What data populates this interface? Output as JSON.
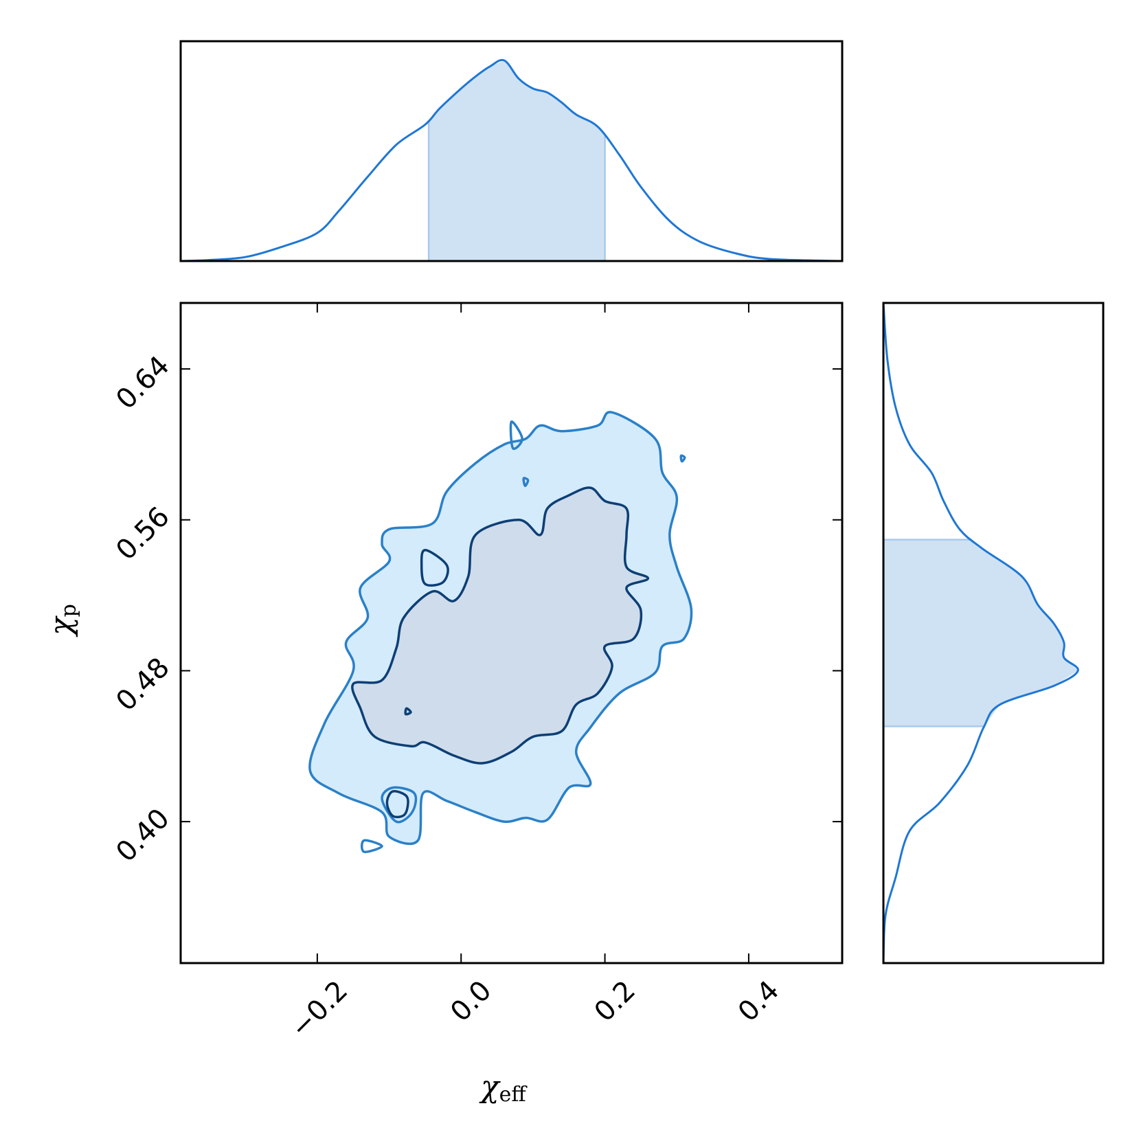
{
  "chart_data": {
    "type": "corner",
    "x_label": "χ",
    "x_label_sub": "eff",
    "y_label": "χ",
    "y_label_sub": "p",
    "xlim": [
      -0.39,
      0.53
    ],
    "ylim": [
      0.325,
      0.675
    ],
    "x_ticks": [
      -0.2,
      0.0,
      0.2,
      0.4
    ],
    "x_tick_labels": [
      "−0.2",
      "0.0",
      "0.2",
      "0.4"
    ],
    "y_ticks": [
      0.4,
      0.48,
      0.56,
      0.64
    ],
    "y_tick_labels": [
      "0.40",
      "0.48",
      "0.56",
      "0.64"
    ],
    "colors": {
      "line": "#1f77d4",
      "band_fill": "#cfe2f3",
      "outer_fill": "#d4ebfb",
      "outer_stroke": "#2a80c8",
      "inner_fill": "#cfdcec",
      "inner_stroke": "#0d3f74"
    },
    "x_marginal": {
      "x": [
        -0.39,
        -0.35,
        -0.3,
        -0.25,
        -0.2,
        -0.17,
        -0.13,
        -0.09,
        -0.05,
        -0.03,
        0.0,
        0.02,
        0.04,
        0.06,
        0.08,
        0.1,
        0.12,
        0.14,
        0.16,
        0.19,
        0.22,
        0.25,
        0.29,
        0.33,
        0.38,
        0.43,
        0.53
      ],
      "density": [
        0.0,
        0.005,
        0.02,
        0.07,
        0.14,
        0.25,
        0.42,
        0.58,
        0.68,
        0.76,
        0.86,
        0.92,
        0.97,
        1.0,
        0.91,
        0.86,
        0.84,
        0.79,
        0.73,
        0.67,
        0.53,
        0.37,
        0.2,
        0.1,
        0.04,
        0.01,
        0.0
      ],
      "band": [
        -0.045,
        0.2
      ]
    },
    "y_marginal": {
      "y": [
        0.325,
        0.35,
        0.37,
        0.395,
        0.41,
        0.43,
        0.45,
        0.462,
        0.472,
        0.48,
        0.487,
        0.495,
        0.505,
        0.515,
        0.53,
        0.545,
        0.555,
        0.57,
        0.585,
        0.6,
        0.62,
        0.645,
        0.675
      ],
      "density": [
        0.0,
        0.01,
        0.06,
        0.13,
        0.28,
        0.42,
        0.5,
        0.58,
        0.85,
        0.97,
        0.9,
        0.9,
        0.85,
        0.77,
        0.69,
        0.49,
        0.38,
        0.3,
        0.24,
        0.13,
        0.06,
        0.02,
        0.0
      ],
      "band": [
        0.4505,
        0.5495
      ]
    },
    "contours": {
      "outer": [
        [
          [
            -0.053,
            0.415
          ],
          [
            -0.02,
            0.411
          ],
          [
            0.02,
            0.405
          ],
          [
            0.06,
            0.4
          ],
          [
            0.09,
            0.402
          ],
          [
            0.12,
            0.401
          ],
          [
            0.15,
            0.418
          ],
          [
            0.18,
            0.42
          ],
          [
            0.16,
            0.437
          ],
          [
            0.18,
            0.45
          ],
          [
            0.22,
            0.468
          ],
          [
            0.27,
            0.479
          ],
          [
            0.28,
            0.493
          ],
          [
            0.31,
            0.497
          ],
          [
            0.32,
            0.513
          ],
          [
            0.3,
            0.535
          ],
          [
            0.29,
            0.552
          ],
          [
            0.3,
            0.572
          ],
          [
            0.28,
            0.585
          ],
          [
            0.27,
            0.603
          ],
          [
            0.21,
            0.617
          ],
          [
            0.19,
            0.61
          ],
          [
            0.14,
            0.607
          ],
          [
            0.11,
            0.61
          ],
          [
            0.09,
            0.603
          ],
          [
            0.06,
            0.6
          ],
          [
            0.02,
            0.59
          ],
          [
            -0.02,
            0.575
          ],
          [
            -0.04,
            0.558
          ],
          [
            -0.1,
            0.555
          ],
          [
            -0.11,
            0.547
          ],
          [
            -0.1,
            0.538
          ],
          [
            -0.14,
            0.524
          ],
          [
            -0.13,
            0.508
          ],
          [
            -0.16,
            0.495
          ],
          [
            -0.15,
            0.48
          ],
          [
            -0.19,
            0.452
          ],
          [
            -0.21,
            0.427
          ],
          [
            -0.17,
            0.415
          ],
          [
            -0.11,
            0.405
          ],
          [
            -0.1,
            0.392
          ],
          [
            -0.06,
            0.39
          ]
        ]
      ],
      "inner": [
        [
          [
            -0.05,
            0.442
          ],
          [
            -0.01,
            0.435
          ],
          [
            0.03,
            0.431
          ],
          [
            0.07,
            0.437
          ],
          [
            0.1,
            0.445
          ],
          [
            0.14,
            0.448
          ],
          [
            0.16,
            0.462
          ],
          [
            0.19,
            0.468
          ],
          [
            0.21,
            0.482
          ],
          [
            0.2,
            0.493
          ],
          [
            0.24,
            0.497
          ],
          [
            0.25,
            0.512
          ],
          [
            0.23,
            0.524
          ],
          [
            0.26,
            0.529
          ],
          [
            0.23,
            0.535
          ],
          [
            0.23,
            0.552
          ],
          [
            0.23,
            0.566
          ],
          [
            0.2,
            0.57
          ],
          [
            0.18,
            0.577
          ],
          [
            0.15,
            0.573
          ],
          [
            0.12,
            0.566
          ],
          [
            0.11,
            0.552
          ],
          [
            0.08,
            0.56
          ],
          [
            0.02,
            0.552
          ],
          [
            0.01,
            0.53
          ],
          [
            -0.01,
            0.517
          ],
          [
            -0.04,
            0.522
          ],
          [
            -0.08,
            0.508
          ],
          [
            -0.09,
            0.492
          ],
          [
            -0.11,
            0.475
          ],
          [
            -0.15,
            0.473
          ],
          [
            -0.14,
            0.46
          ],
          [
            -0.12,
            0.445
          ],
          [
            -0.07,
            0.44
          ]
        ]
      ],
      "islands": [
        {
          "level": "outer",
          "points": [
            [
              -0.095,
              0.418
            ],
            [
              -0.065,
              0.415
            ],
            [
              -0.068,
              0.405
            ],
            [
              -0.09,
              0.4
            ],
            [
              -0.11,
              0.412
            ]
          ]
        },
        {
          "level": "inner",
          "points": [
            [
              -0.095,
              0.416
            ],
            [
              -0.075,
              0.413
            ],
            [
              -0.078,
              0.404
            ],
            [
              -0.095,
              0.403
            ],
            [
              -0.103,
              0.41
            ]
          ]
        },
        {
          "level": "inner",
          "points": [
            [
              -0.05,
              0.544
            ],
            [
              -0.02,
              0.536
            ],
            [
              -0.025,
              0.527
            ],
            [
              -0.05,
              0.526
            ],
            [
              -0.055,
              0.536
            ]
          ]
        },
        {
          "level": "inner",
          "points": [
            [
              -0.076,
              0.46
            ],
            [
              -0.07,
              0.458
            ],
            [
              -0.077,
              0.457
            ]
          ]
        },
        {
          "level": "outer",
          "points": [
            [
              0.306,
              0.594
            ],
            [
              0.311,
              0.593
            ],
            [
              0.307,
              0.591
            ]
          ]
        },
        {
          "level": "outer",
          "points": [
            [
              0.087,
              0.582
            ],
            [
              0.093,
              0.581
            ],
            [
              0.089,
              0.578
            ]
          ]
        },
        {
          "level": "outer",
          "points": [
            [
              -0.135,
              0.39
            ],
            [
              -0.11,
              0.387
            ],
            [
              -0.135,
              0.384
            ]
          ]
        },
        {
          "level": "outer",
          "points": [
            [
              0.07,
              0.612
            ],
            [
              0.085,
              0.603
            ],
            [
              0.072,
              0.598
            ]
          ]
        }
      ]
    }
  }
}
